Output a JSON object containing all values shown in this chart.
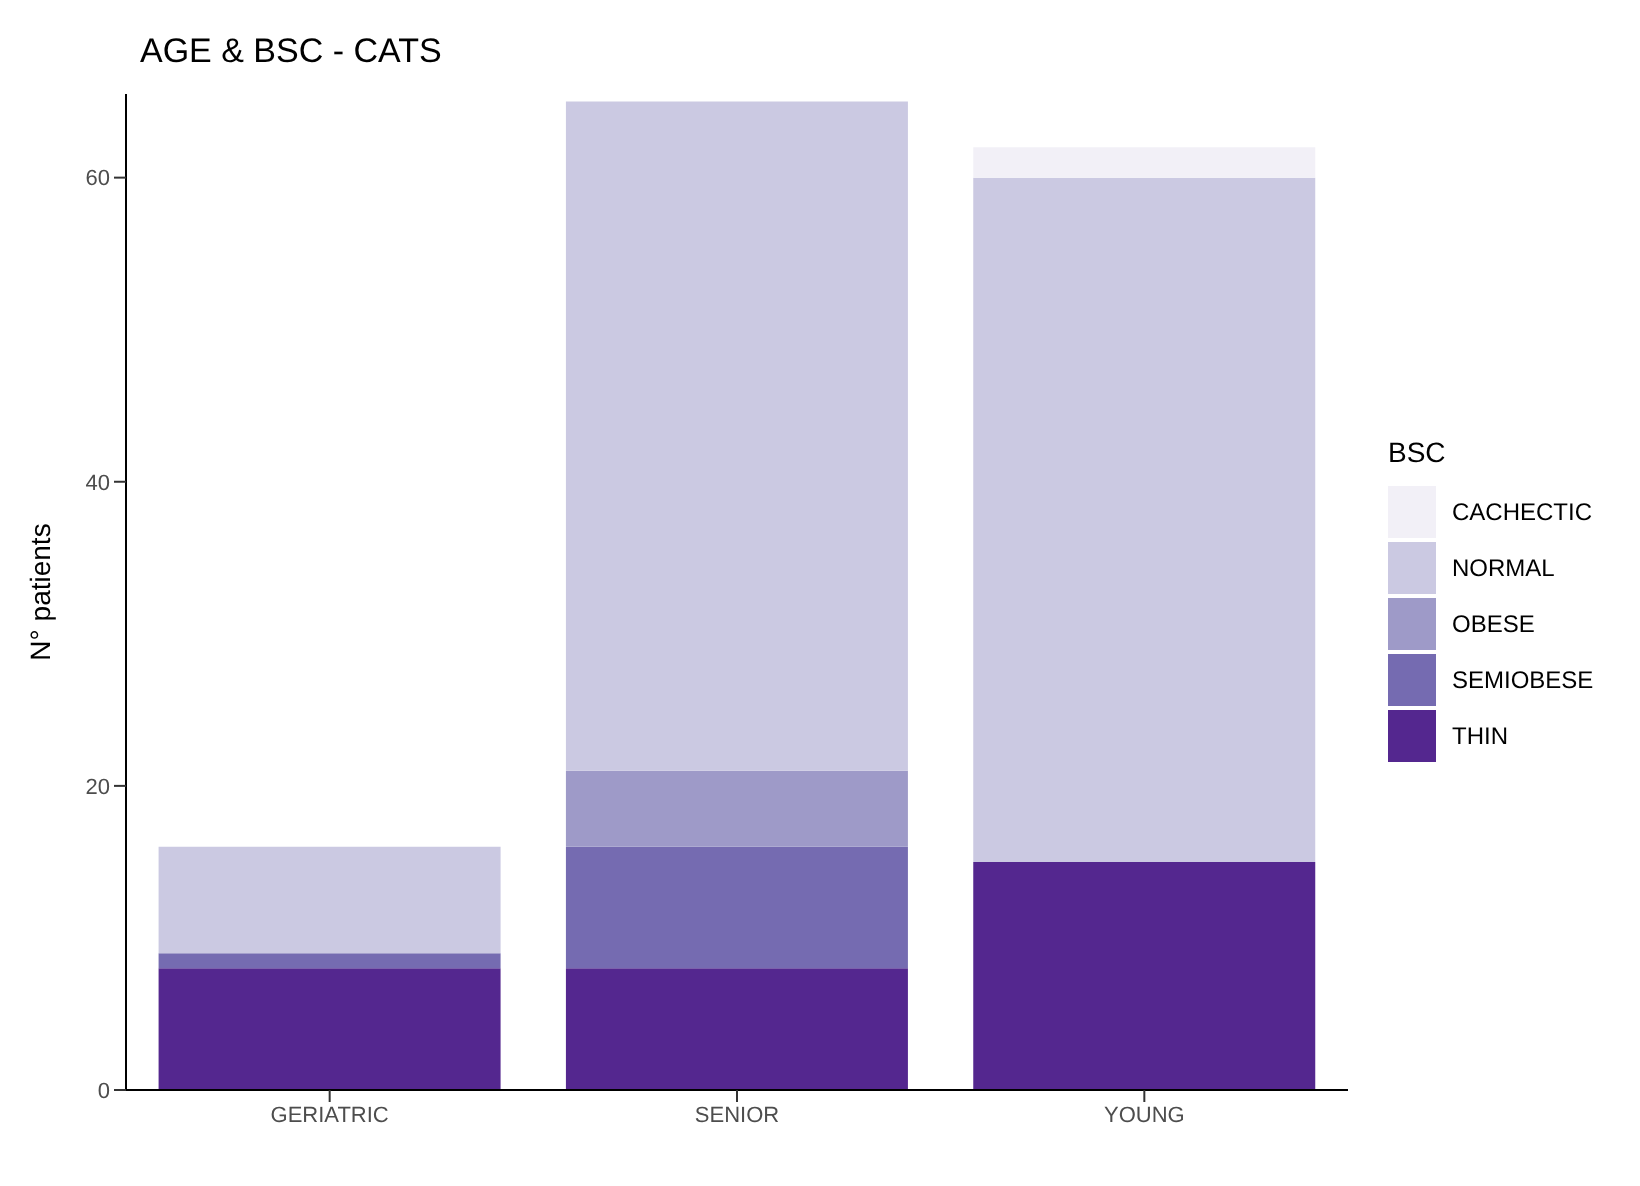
{
  "chart_data": {
    "type": "bar",
    "title": "AGE & BSC - CATS",
    "ylabel": "N° patients",
    "legend_title": "BSC",
    "categories": [
      "GERIATRIC",
      "SENIOR",
      "YOUNG"
    ],
    "stacked": true,
    "ylim": [
      0,
      65.5
    ],
    "yticks": [
      0,
      20,
      40,
      60
    ],
    "legend": "right",
    "series": [
      {
        "name": "THIN",
        "color": "#54278f",
        "values": [
          8,
          8,
          15
        ]
      },
      {
        "name": "SEMIOBESE",
        "color": "#756bb1",
        "values": [
          1,
          8,
          0
        ]
      },
      {
        "name": "OBESE",
        "color": "#9e9ac8",
        "values": [
          0,
          5,
          0
        ]
      },
      {
        "name": "NORMAL",
        "color": "#cbc9e2",
        "values": [
          7,
          44,
          45
        ]
      },
      {
        "name": "CACHECTIC",
        "color": "#f2f0f7",
        "values": [
          0,
          0,
          2
        ]
      }
    ]
  }
}
